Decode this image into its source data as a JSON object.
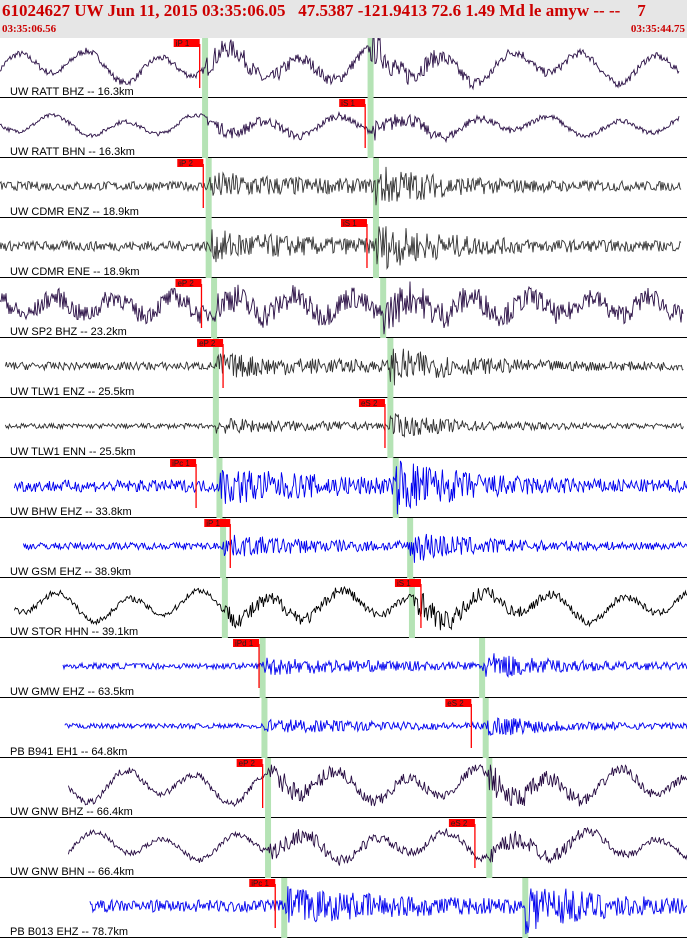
{
  "header": {
    "title": "61024627 UW Jun 11, 2015 03:35:06.05   47.5387 -121.9413 72.6 1.49 Md le amyw -- --    7",
    "start_time": "03:35:06.56",
    "end_time": "03:35:44.75"
  },
  "colors": {
    "header_bg": "#e6e6e6",
    "header_text": "#cc0000",
    "pick": "#ff0000",
    "theoretical_band": "#b5e3b5",
    "trace_dark": "#2a0f45",
    "trace_gray": "#333333",
    "trace_blue": "#0000ee",
    "trace_black": "#000000"
  },
  "chart_data": {
    "type": "line",
    "title": "61024627 UW Jun 11, 2015 03:35:06.05",
    "x_range": [
      "03:35:06.56",
      "03:35:44.75"
    ],
    "series": [
      {
        "name": "UW RATT BHZ -- 16.3km",
        "pick": "iP 1",
        "pick_time_s": 11.1,
        "color": "trace_dark",
        "style": "long",
        "amp": 0.55,
        "start_s": 0.0,
        "end_s": 37.8,
        "band_p_s": 11.4,
        "band_s_s": 20.6
      },
      {
        "name": "UW RATT BHN -- 16.3km",
        "pick": "iS 1",
        "pick_time_s": 20.3,
        "color": "trace_dark",
        "style": "long",
        "amp": 0.35,
        "start_s": 0.0,
        "end_s": 37.8,
        "band_p_s": 11.4,
        "band_s_s": 20.6
      },
      {
        "name": "UW CDMR ENZ -- 18.9km",
        "pick": "iP 2",
        "pick_time_s": 11.3,
        "color": "trace_gray",
        "style": "noise",
        "amp": 0.45,
        "start_s": 0.0,
        "end_s": 37.9,
        "band_p_s": 11.6,
        "band_s_s": 20.9
      },
      {
        "name": "UW CDMR ENE -- 18.9km",
        "pick": "iS 1",
        "pick_time_s": 20.4,
        "color": "trace_gray",
        "style": "noise",
        "amp": 0.5,
        "start_s": 0.0,
        "end_s": 37.9,
        "band_p_s": 11.6,
        "band_s_s": 20.9
      },
      {
        "name": "UW SP2 BHZ -- 23.2km",
        "pick": "eP 2",
        "pick_time_s": 11.2,
        "color": "trace_dark",
        "style": "mixed",
        "amp": 0.55,
        "start_s": 0.0,
        "end_s": 38.0,
        "band_p_s": 11.9,
        "band_s_s": 21.3
      },
      {
        "name": "UW TLW1 ENZ -- 25.5km",
        "pick": "eP 2",
        "pick_time_s": 12.4,
        "color": "trace_gray",
        "style": "noise",
        "amp": 0.4,
        "start_s": 0.3,
        "end_s": 38.0,
        "band_p_s": 12.0,
        "band_s_s": 21.7
      },
      {
        "name": "UW TLW1 ENN -- 25.5km",
        "pick": "eS 2",
        "pick_time_s": 21.4,
        "color": "trace_gray",
        "style": "noise",
        "amp": 0.25,
        "start_s": 0.3,
        "end_s": 38.0,
        "band_p_s": 12.0,
        "band_s_s": 21.7
      },
      {
        "name": "UW BHW EHZ -- 33.8km",
        "pick": "iPc 1",
        "pick_time_s": 10.9,
        "color": "trace_blue",
        "style": "noise",
        "amp": 0.6,
        "start_s": 0.8,
        "end_s": 38.8,
        "band_p_s": 12.2,
        "band_s_s": 22.0
      },
      {
        "name": "UW GSM EHZ -- 38.9km",
        "pick": "iP 1",
        "pick_time_s": 12.8,
        "color": "trace_blue",
        "style": "noise",
        "amp": 0.35,
        "start_s": 1.3,
        "end_s": 39.2,
        "band_p_s": 12.4,
        "band_s_s": 22.8
      },
      {
        "name": "UW STOR HHN -- 39.1km",
        "pick": "iS 1",
        "pick_time_s": 23.4,
        "color": "trace_black",
        "style": "long",
        "amp": 0.5,
        "start_s": 0.8,
        "end_s": 39.2,
        "band_p_s": 12.5,
        "band_s_s": 22.9
      },
      {
        "name": "UW GMW EHZ -- 63.5km",
        "pick": "iPd 1",
        "pick_time_s": 14.4,
        "color": "trace_blue",
        "style": "noise",
        "amp": 0.3,
        "start_s": 3.5,
        "end_s": 41.3,
        "band_p_s": 14.6,
        "band_s_s": 26.8
      },
      {
        "name": "PB B941 EH1 -- 64.8km",
        "pick": "eS 2",
        "pick_time_s": 26.2,
        "color": "trace_blue",
        "style": "noise",
        "amp": 0.25,
        "start_s": 3.6,
        "end_s": 41.4,
        "band_p_s": 14.7,
        "band_s_s": 27.0
      },
      {
        "name": "UW GNW BHZ -- 66.4km",
        "pick": "eP 2",
        "pick_time_s": 14.6,
        "color": "trace_dark",
        "style": "long",
        "amp": 0.55,
        "start_s": 3.8,
        "end_s": 41.6,
        "band_p_s": 14.9,
        "band_s_s": 27.2
      },
      {
        "name": "UW GNW BHN -- 66.4km",
        "pick": "eS 2",
        "pick_time_s": 26.4,
        "color": "trace_dark",
        "style": "long",
        "amp": 0.45,
        "start_s": 3.8,
        "end_s": 41.6,
        "band_p_s": 14.9,
        "band_s_s": 27.2
      },
      {
        "name": "PB B013 EHZ -- 78.7km",
        "pick": "iPc 1",
        "pick_time_s": 15.3,
        "color": "trace_blue",
        "style": "noise",
        "amp": 0.6,
        "start_s": 5.0,
        "end_s": 42.9,
        "band_p_s": 15.8,
        "band_s_s": 29.2
      }
    ]
  }
}
